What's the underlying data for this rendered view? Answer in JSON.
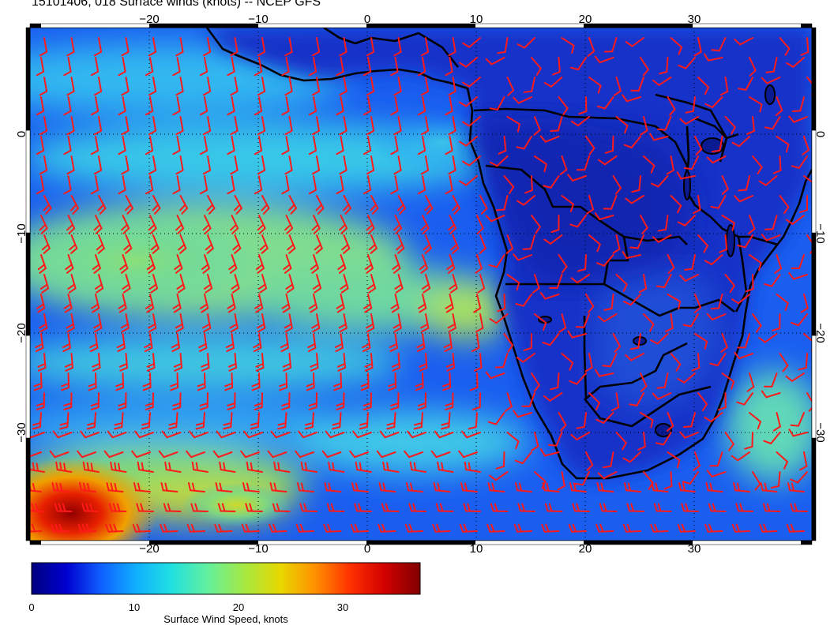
{
  "title": "15101406, 018 Surface winds (knots) -- NCEP GFS",
  "map": {
    "lon_range": [
      -31,
      41
    ],
    "lat_range": [
      -40,
      10
    ],
    "lon_ticks": [
      "−20",
      "−10",
      "0",
      "10",
      "20",
      "30"
    ],
    "lat_ticks": [
      "0",
      "−10",
      "−20",
      "−30"
    ],
    "graticule": "dotted",
    "barb_color": "#ff1a1a",
    "coastline_color": "#000000"
  },
  "colorbar": {
    "label": "Surface Wind Speed, knots",
    "tick_labels": [
      "0",
      "10",
      "20",
      "30"
    ],
    "range": [
      0,
      37
    ],
    "colors": [
      "#00007f",
      "#0000d0",
      "#1060ff",
      "#10b0ff",
      "#20e0e0",
      "#60f0a0",
      "#a8e840",
      "#e8d800",
      "#ff9000",
      "#ff3000",
      "#d00000",
      "#800000"
    ]
  }
}
